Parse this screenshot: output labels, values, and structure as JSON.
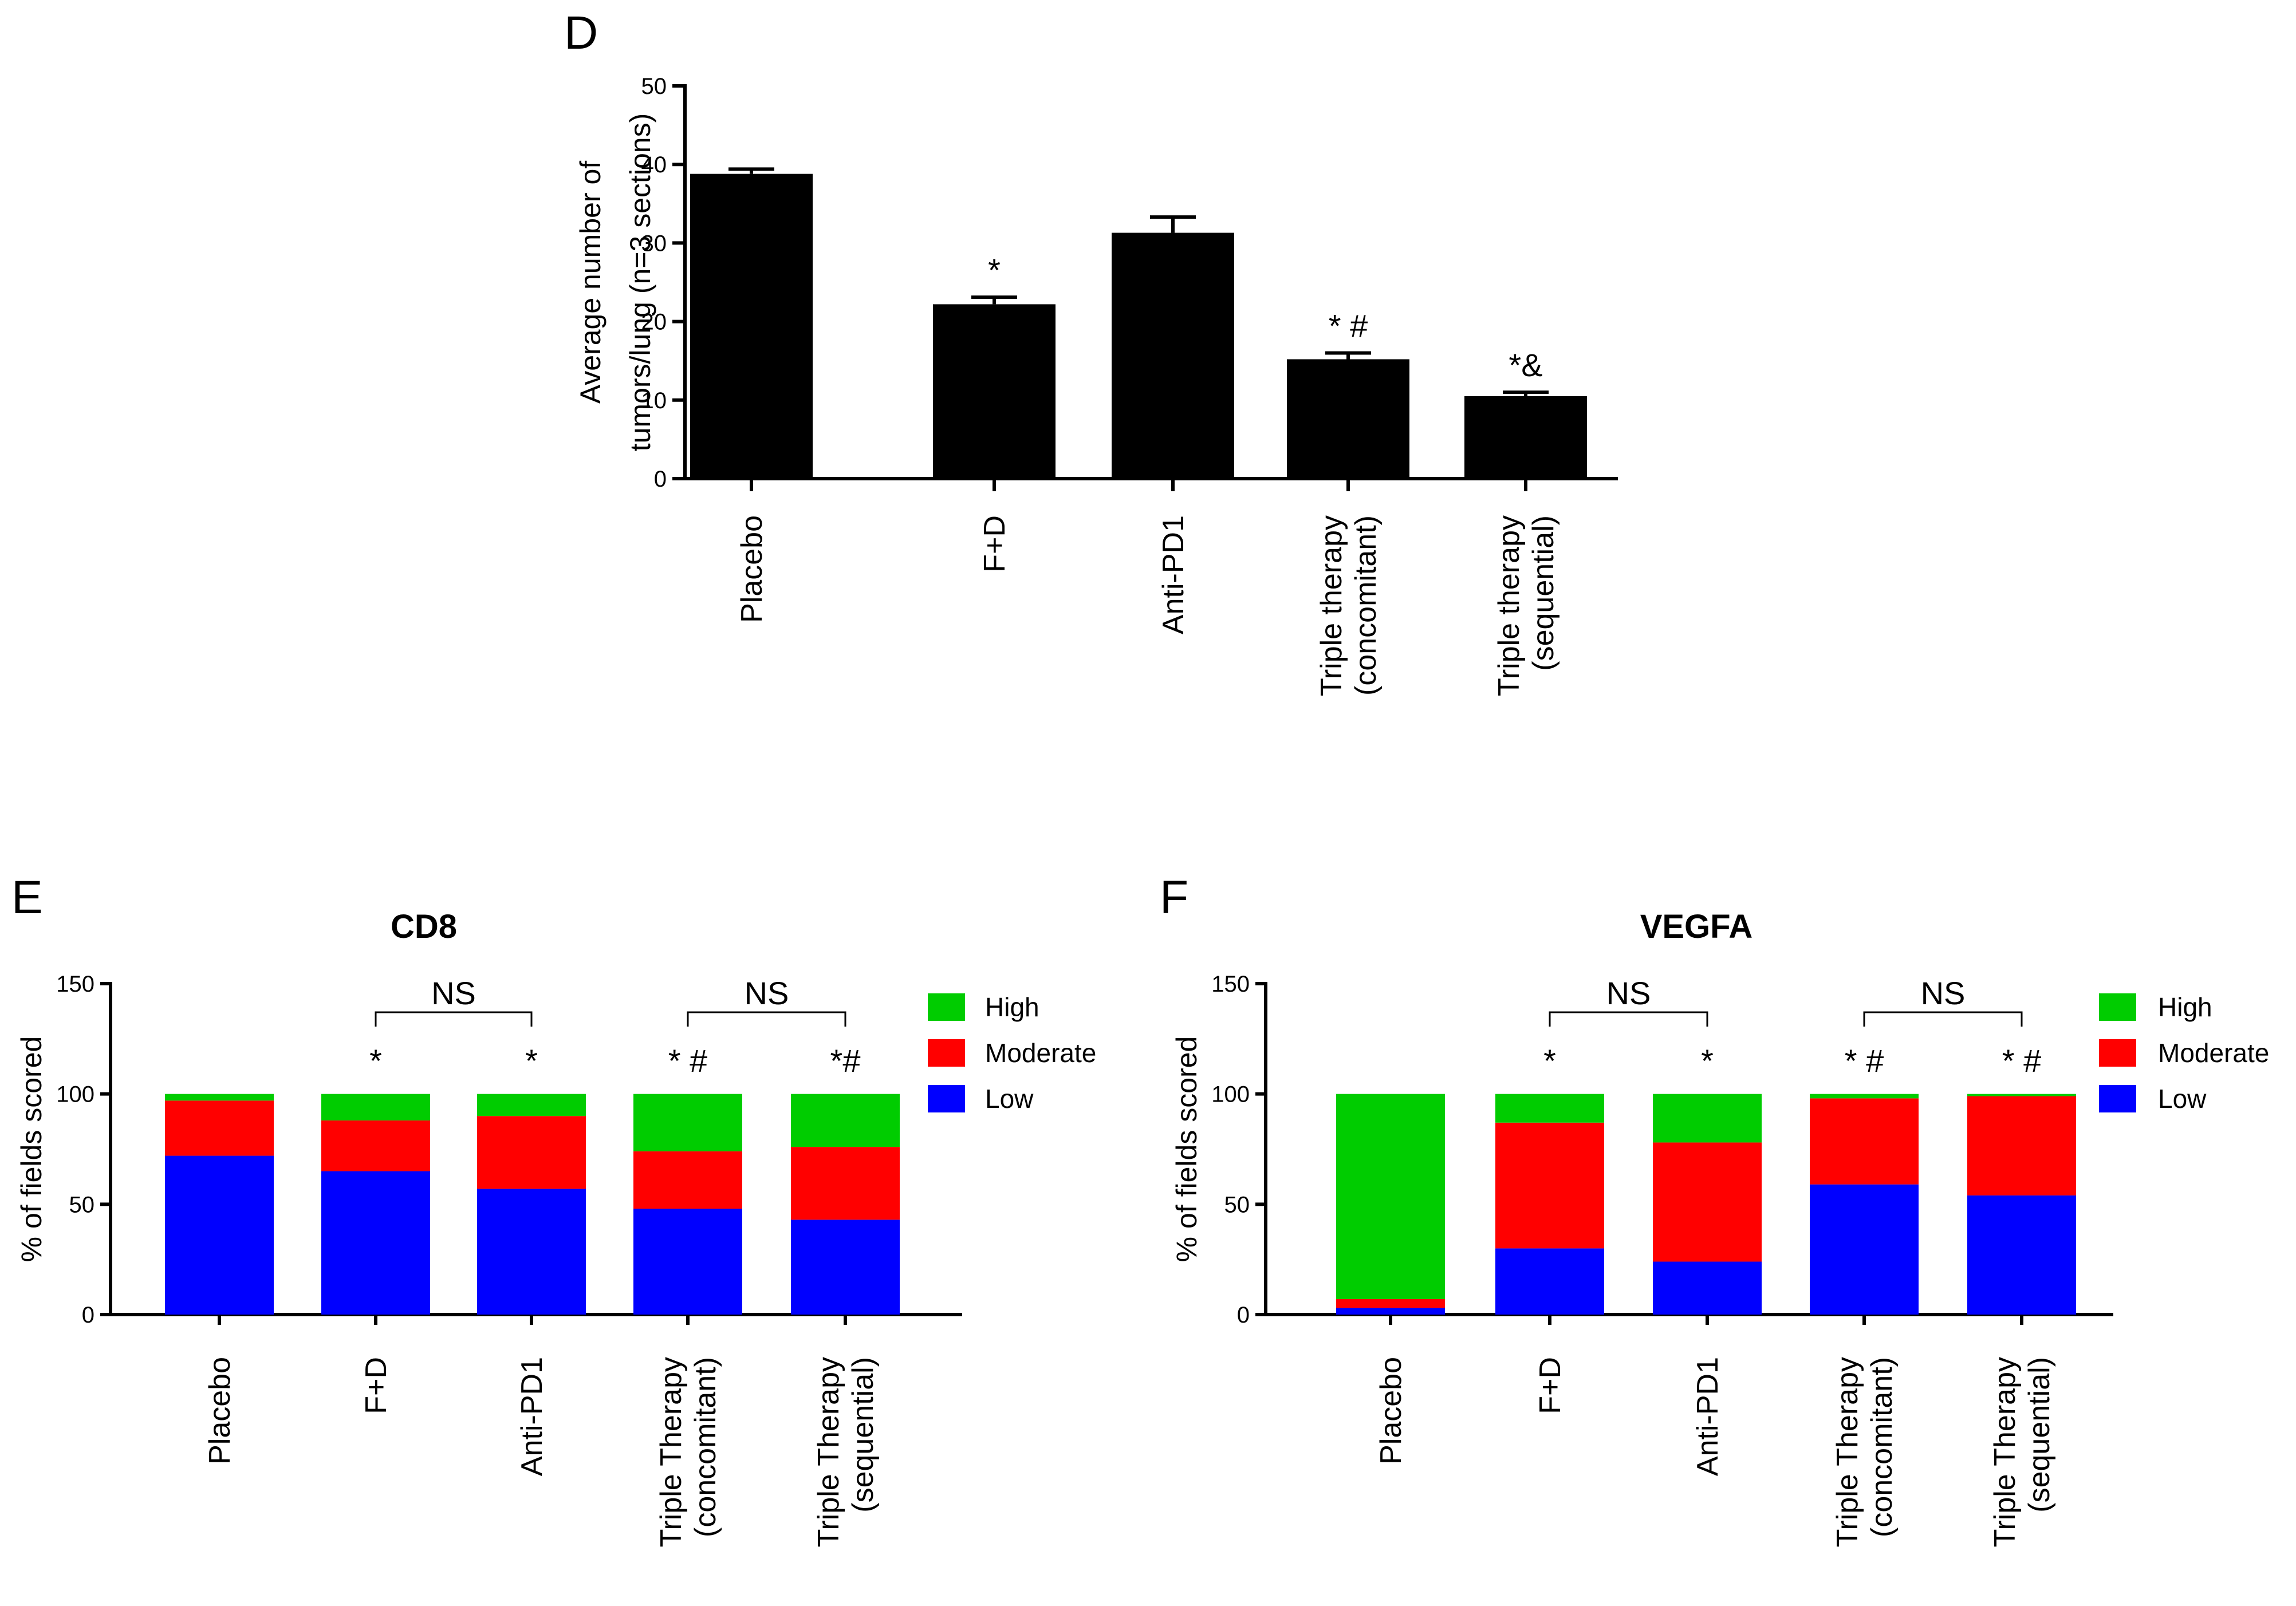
{
  "chart_data": [
    {
      "panel": "D",
      "type": "bar",
      "ylabel": [
        "Average number of",
        "tumors/lung (n=3 sections)"
      ],
      "ylim": [
        0,
        50
      ],
      "yticks": [
        0,
        10,
        20,
        30,
        40,
        50
      ],
      "categories": [
        [
          "Placebo"
        ],
        [
          "F+D"
        ],
        [
          "Anti-PD1"
        ],
        [
          "Triple therapy",
          "(concomitant)"
        ],
        [
          "Triple therapy",
          "(sequential)"
        ]
      ],
      "values": [
        38.8,
        22.2,
        31.3,
        15.2,
        10.5
      ],
      "errors": [
        0.6,
        0.9,
        2.0,
        0.8,
        0.5
      ],
      "annotations": [
        "",
        "*",
        "",
        "* #",
        "*&"
      ],
      "colors": {
        "bar": "#000000"
      }
    },
    {
      "panel": "E",
      "type": "bar",
      "stacked": true,
      "title": "CD8",
      "ylabel": "% of fields scored",
      "ylim": [
        0,
        150
      ],
      "yticks": [
        0,
        50,
        100,
        150
      ],
      "categories": [
        [
          "Placebo"
        ],
        [
          "F+D"
        ],
        [
          "Anti-PD1"
        ],
        [
          "Triple Therapy",
          "(concomitant)"
        ],
        [
          "Triple Therapy",
          "(sequential)"
        ]
      ],
      "series": [
        {
          "name": "Low",
          "color": "#0000FF",
          "values": [
            72,
            65,
            57,
            48,
            43
          ]
        },
        {
          "name": "Moderate",
          "color": "#FF0000",
          "values": [
            25,
            23,
            33,
            26,
            33
          ]
        },
        {
          "name": "High",
          "color": "#00CC00",
          "values": [
            3,
            12,
            10,
            26,
            24
          ]
        }
      ],
      "legend": [
        "High",
        "Moderate",
        "Low"
      ],
      "annotations": [
        "",
        "*",
        "*",
        "* #",
        "*#"
      ],
      "brackets": [
        {
          "from": 1,
          "to": 2,
          "label": "NS"
        },
        {
          "from": 3,
          "to": 4,
          "label": "NS"
        }
      ]
    },
    {
      "panel": "F",
      "type": "bar",
      "stacked": true,
      "title": "VEGFA",
      "ylabel": "% of fields scored",
      "ylim": [
        0,
        150
      ],
      "yticks": [
        0,
        50,
        100,
        150
      ],
      "categories": [
        [
          "Placebo"
        ],
        [
          "F+D"
        ],
        [
          "Anti-PD1"
        ],
        [
          "Triple Therapy",
          "(concomitant)"
        ],
        [
          "Triple Therapy",
          "(sequential)"
        ]
      ],
      "series": [
        {
          "name": "Low",
          "color": "#0000FF",
          "values": [
            3,
            30,
            24,
            59,
            54
          ]
        },
        {
          "name": "Moderate",
          "color": "#FF0000",
          "values": [
            4,
            57,
            54,
            39,
            45
          ]
        },
        {
          "name": "High",
          "color": "#00CC00",
          "values": [
            93,
            13,
            22,
            2,
            1
          ]
        }
      ],
      "legend": [
        "High",
        "Moderate",
        "Low"
      ],
      "annotations": [
        "",
        "*",
        "*",
        "* #",
        "* #"
      ],
      "brackets": [
        {
          "from": 1,
          "to": 2,
          "label": "NS"
        },
        {
          "from": 3,
          "to": 4,
          "label": "NS"
        }
      ]
    }
  ]
}
